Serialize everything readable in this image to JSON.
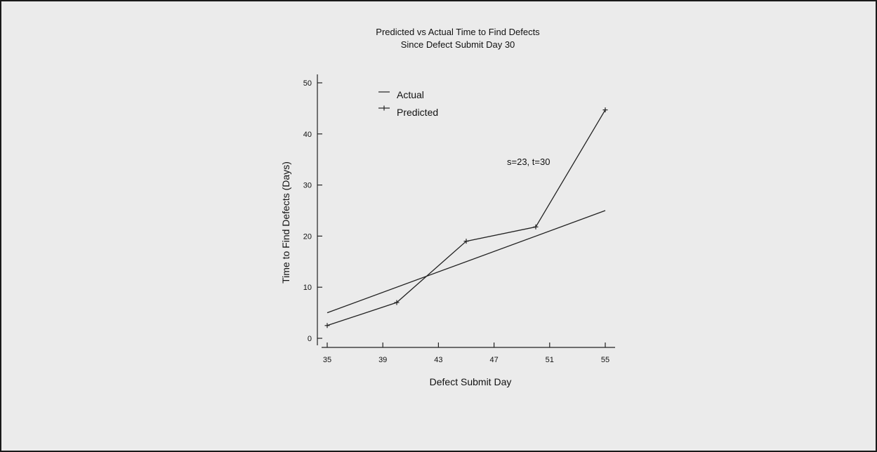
{
  "chart_data": {
    "type": "line",
    "title": "Predicted vs Actual Time to Find Defects",
    "subtitle": "Since Defect Submit Day 30",
    "xlabel": "Defect Submit Day",
    "ylabel": "Time to Find Defects (Days)",
    "xlim": [
      35,
      55
    ],
    "ylim": [
      0,
      50
    ],
    "x_ticks": [
      "35",
      "39",
      "43",
      "47",
      "51",
      "55"
    ],
    "y_ticks": [
      "0",
      "10",
      "20",
      "30",
      "40",
      "50"
    ],
    "annotation": "s=23, t=30",
    "legend_position": "top-left",
    "series": [
      {
        "name": "Actual",
        "marker": "none",
        "x": [
          35,
          55
        ],
        "y": [
          5,
          25
        ]
      },
      {
        "name": "Predicted",
        "marker": "plus",
        "x": [
          35,
          40,
          45,
          50,
          55
        ],
        "y": [
          2.5,
          7,
          19,
          21.8,
          44.7
        ]
      }
    ]
  }
}
